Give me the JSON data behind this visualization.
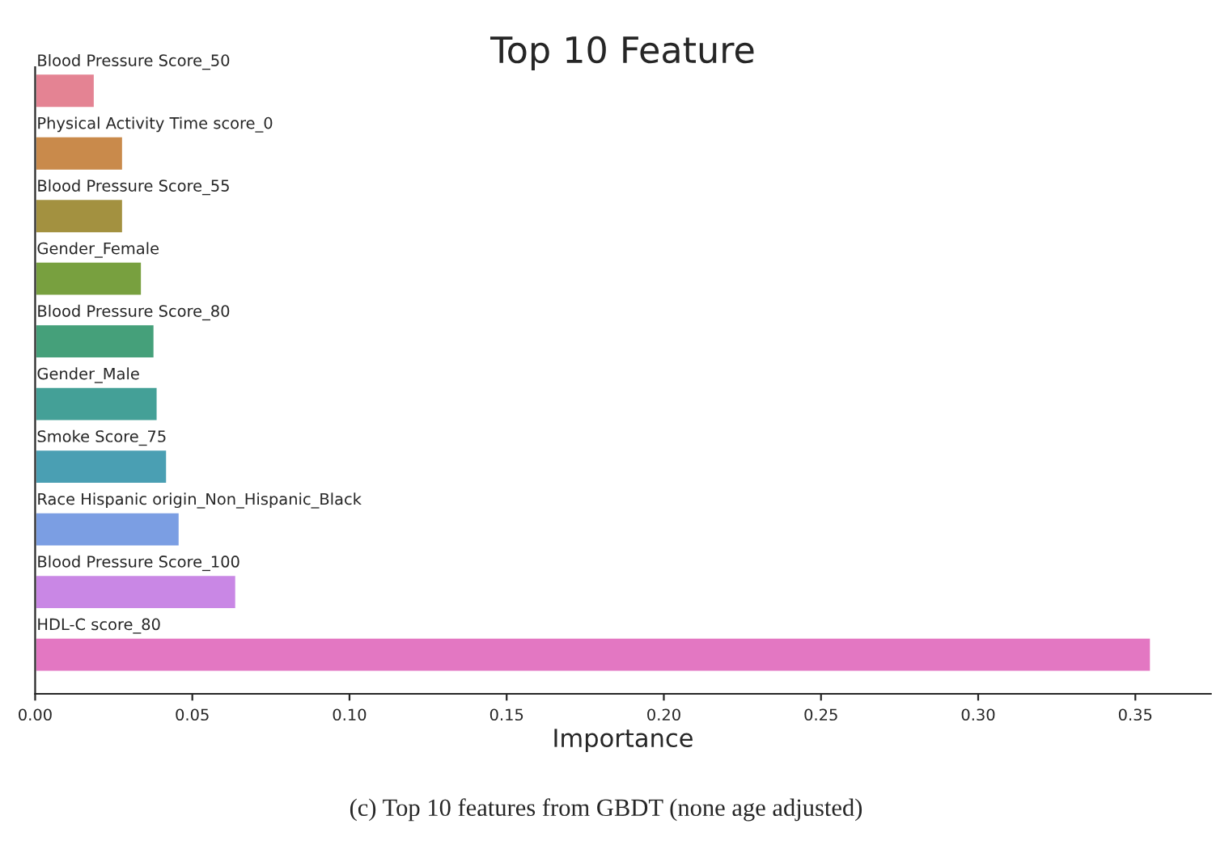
{
  "chart_data": {
    "type": "bar",
    "orientation": "horizontal",
    "title": "Top 10 Feature",
    "xlabel": "Importance",
    "categories": [
      "Blood Pressure Score_50",
      "Physical Activity Time score_0",
      "Blood Pressure Score_55",
      "Gender_Female",
      "Blood Pressure Score_80",
      "Gender_Male",
      "Smoke Score_75",
      "Race Hispanic origin_Non_Hispanic_Black",
      "Blood Pressure Score_100",
      "HDL-C score_80"
    ],
    "values": [
      0.019,
      0.028,
      0.028,
      0.034,
      0.038,
      0.039,
      0.042,
      0.046,
      0.064,
      0.355
    ],
    "colors": [
      "#e48393",
      "#c98a4b",
      "#a39140",
      "#78a03f",
      "#45a07a",
      "#44a097",
      "#4a9fb3",
      "#7b9ee3",
      "#c987e5",
      "#e377c2"
    ],
    "xlim": [
      0,
      0.374
    ],
    "xticks": [
      {
        "value": 0,
        "label": "0.00"
      },
      {
        "value": 0.05,
        "label": "0.05"
      },
      {
        "value": 0.1,
        "label": "0.10"
      },
      {
        "value": 0.15,
        "label": "0.15"
      },
      {
        "value": 0.2,
        "label": "0.20"
      },
      {
        "value": 0.25,
        "label": "0.25"
      },
      {
        "value": 0.3,
        "label": "0.30"
      },
      {
        "value": 0.35,
        "label": "0.35"
      }
    ],
    "tick_labels": "x",
    "grid": false,
    "legend": false,
    "annotations": [
      "(c) Top 10 features from GBDT (none age adjusted)"
    ]
  }
}
